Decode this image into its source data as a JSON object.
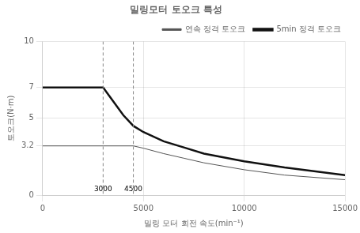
{
  "chart_data": {
    "type": "line",
    "title": "밀링모터 토오크 특성",
    "xlabel": "밀링 모터 회전 속도(min⁻¹)",
    "ylabel": "토오크(N·m)",
    "xlim": [
      0,
      15000
    ],
    "ylim": [
      0,
      10
    ],
    "xticks": [
      0,
      5000,
      10000,
      15000
    ],
    "yticks": [
      0,
      3.2,
      5,
      7,
      10
    ],
    "grid": true,
    "legend": "upper right",
    "series": [
      {
        "name": "연속 정격 토오크",
        "color": "#555555",
        "x": [
          0,
          3000,
          4500,
          5000,
          6000,
          7000,
          8000,
          10000,
          12000,
          15000
        ],
        "values": [
          3.2,
          3.2,
          3.2,
          3.05,
          2.7,
          2.4,
          2.1,
          1.65,
          1.3,
          1.0
        ]
      },
      {
        "name": "5min 정격 토오크",
        "color": "#111111",
        "x": [
          0,
          3000,
          3500,
          4000,
          4500,
          5000,
          6000,
          7000,
          8000,
          10000,
          12000,
          15000
        ],
        "values": [
          7.0,
          7.0,
          6.1,
          5.2,
          4.5,
          4.1,
          3.5,
          3.1,
          2.7,
          2.2,
          1.8,
          1.3
        ]
      }
    ],
    "annotations": [
      {
        "x": 3000,
        "text": "3000",
        "line_style": "dashed"
      },
      {
        "x": 4500,
        "text": "4500",
        "line_style": "dashed"
      }
    ]
  }
}
